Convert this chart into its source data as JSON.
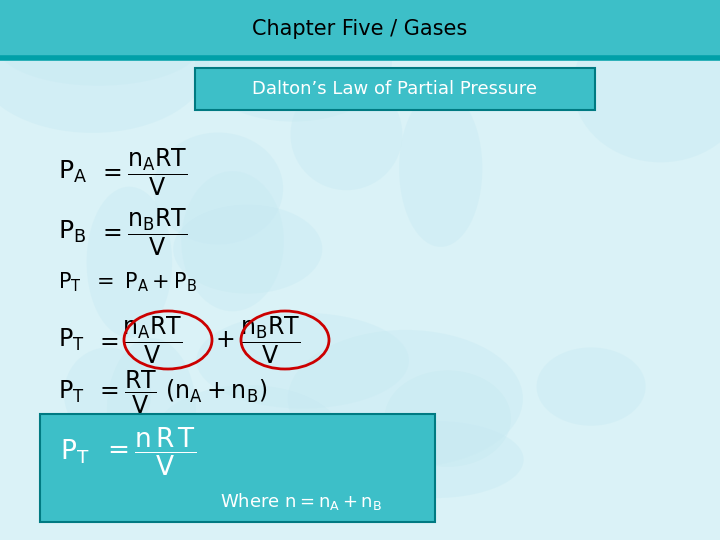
{
  "title": "Chapter Five / Gases",
  "subtitle": "Dalton’s Law of Partial Pressure",
  "header_bg": "#3dbfc8",
  "header_line_color": "#00a0a8",
  "subtitle_box_color": "#3dbfc8",
  "body_bg_top": "#cceef5",
  "body_bg": "#daf2f7",
  "bottom_box_color": "#3dbfc8",
  "title_fontsize": 15,
  "subtitle_fontsize": 13,
  "eq_fontsize": 16,
  "circle_color": "#cc0000",
  "text_color": "#000000",
  "white": "#ffffff"
}
